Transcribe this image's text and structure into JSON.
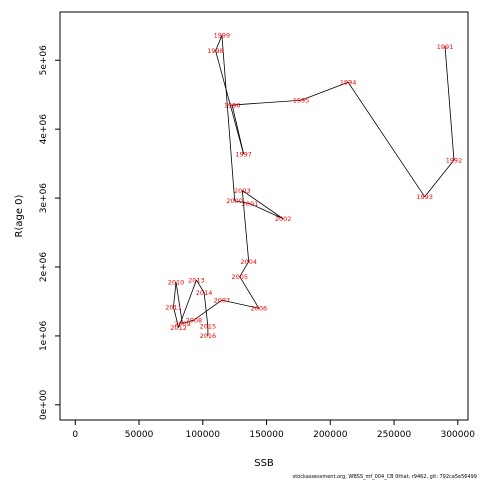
{
  "chart_data": {
    "type": "line",
    "xlabel": "SSB",
    "ylabel": "R(age 0)",
    "xlim": [
      -12000,
      308000
    ],
    "ylim": [
      -220000,
      5700000
    ],
    "xticks": [
      0,
      50000,
      100000,
      150000,
      200000,
      250000,
      300000
    ],
    "xtick_labels": [
      "0",
      "50000",
      "100000",
      "150000",
      "200000",
      "250000",
      "300000"
    ],
    "yticks": [
      0,
      1000000,
      2000000,
      3000000,
      4000000,
      5000000
    ],
    "ytick_labels": [
      "0e+00",
      "1e+06",
      "2e+06",
      "3e+06",
      "4e+06",
      "5e+06"
    ],
    "grid": false,
    "line_color": "#000000",
    "label_color": "#ff0000",
    "series": [
      {
        "points": [
          {
            "label": "1991",
            "x": 290000,
            "y": 5200000
          },
          {
            "label": "1992",
            "x": 297000,
            "y": 3550000
          },
          {
            "label": "1993",
            "x": 274000,
            "y": 3020000
          },
          {
            "label": "1994",
            "x": 214000,
            "y": 4680000
          },
          {
            "label": "1995",
            "x": 177000,
            "y": 4420000
          },
          {
            "label": "1996",
            "x": 123000,
            "y": 4350000
          },
          {
            "label": "1997",
            "x": 132000,
            "y": 3640000
          },
          {
            "label": "1998",
            "x": 110000,
            "y": 5140000
          },
          {
            "label": "1999",
            "x": 115000,
            "y": 5360000
          },
          {
            "label": "2000",
            "x": 125000,
            "y": 2960000
          },
          {
            "label": "2001",
            "x": 137000,
            "y": 2920000
          },
          {
            "label": "2002",
            "x": 163000,
            "y": 2700000
          },
          {
            "label": "2003",
            "x": 131000,
            "y": 3110000
          },
          {
            "label": "2004",
            "x": 136000,
            "y": 2080000
          },
          {
            "label": "2005",
            "x": 129000,
            "y": 1860000
          },
          {
            "label": "2006",
            "x": 144000,
            "y": 1400000
          },
          {
            "label": "2007",
            "x": 115000,
            "y": 1520000
          },
          {
            "label": "2008",
            "x": 93000,
            "y": 1230000
          },
          {
            "label": "2009",
            "x": 84000,
            "y": 1180000
          },
          {
            "label": "2010",
            "x": 79000,
            "y": 1780000
          },
          {
            "label": "2011",
            "x": 77000,
            "y": 1420000
          },
          {
            "label": "2012",
            "x": 81000,
            "y": 1120000
          },
          {
            "label": "2013",
            "x": 95000,
            "y": 1810000
          },
          {
            "label": "2014",
            "x": 101000,
            "y": 1630000
          },
          {
            "label": "2015",
            "x": 104000,
            "y": 1140000
          },
          {
            "label": "2016",
            "x": 104000,
            "y": 1000000
          }
        ]
      }
    ]
  },
  "footer": "stockassessment.org, WBSS_mf_004_CB 0that, r9462, git: 792ca5e56499"
}
